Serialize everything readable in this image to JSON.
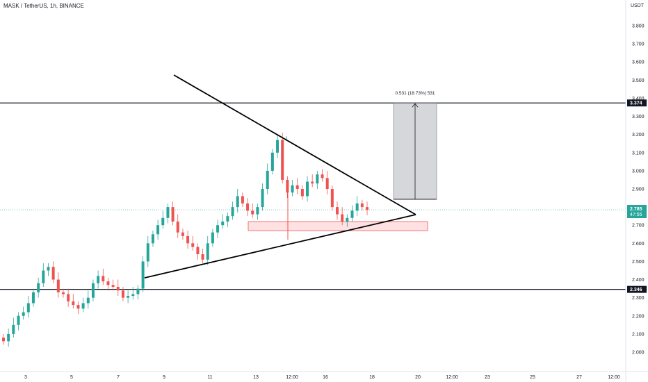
{
  "header": {
    "title": "MASK / TetherUS, 1h, BINANCE",
    "unit": "USDT"
  },
  "chart_data": {
    "type": "candlestick",
    "symbol": "MASK / TetherUS",
    "interval": "1h",
    "exchange": "BINANCE",
    "y_ticks": [
      "2.000",
      "2.100",
      "2.200",
      "2.300",
      "2.400",
      "2.500",
      "2.600",
      "2.700",
      "2.800",
      "2.900",
      "3.000",
      "3.100",
      "3.200",
      "3.300",
      "3.400",
      "3.500",
      "3.600",
      "3.700",
      "3.800"
    ],
    "ylim": [
      1.95,
      3.86
    ],
    "x_ticks": [
      "3",
      "5",
      "7",
      "9",
      "11",
      "13",
      "12:00",
      "16",
      "18",
      "20",
      "12:00",
      "23",
      "25",
      "27",
      "12:00"
    ],
    "last_price": "2.785",
    "countdown": "47:55",
    "levels": [
      {
        "price": 3.374,
        "label": "3.374"
      },
      {
        "price": 2.346,
        "label": "2.346"
      }
    ],
    "measure_label": "0.531 (18.73%) 531",
    "measure_from": 2.843,
    "measure_to": 3.374,
    "support_zone": [
      2.67,
      2.72
    ],
    "colors": {
      "up": "#26a69a",
      "down": "#ef5350",
      "level": "#131722",
      "last_price": "#26a69a"
    },
    "series": [
      {
        "name": "MASK/USDT",
        "close": [
          2.06,
          2.1,
          2.15,
          2.2,
          2.22,
          2.27,
          2.33,
          2.38,
          2.45,
          2.47,
          2.4,
          2.33,
          2.32,
          2.28,
          2.26,
          2.24,
          2.27,
          2.3,
          2.38,
          2.42,
          2.39,
          2.37,
          2.36,
          2.34,
          2.3,
          2.31,
          2.32,
          2.35,
          2.5,
          2.6,
          2.65,
          2.7,
          2.74,
          2.8,
          2.72,
          2.66,
          2.64,
          2.6,
          2.58,
          2.54,
          2.51,
          2.6,
          2.66,
          2.7,
          2.72,
          2.75,
          2.8,
          2.86,
          2.82,
          2.78,
          2.76,
          2.8,
          2.9,
          3.0,
          3.1,
          3.17,
          2.95,
          2.88,
          2.92,
          2.9,
          2.86,
          2.94,
          2.93,
          2.98,
          2.96,
          2.9,
          2.8,
          2.76,
          2.72,
          2.74,
          2.78,
          2.82,
          2.8,
          2.785
        ]
      }
    ],
    "pattern": "symmetrical triangle"
  }
}
